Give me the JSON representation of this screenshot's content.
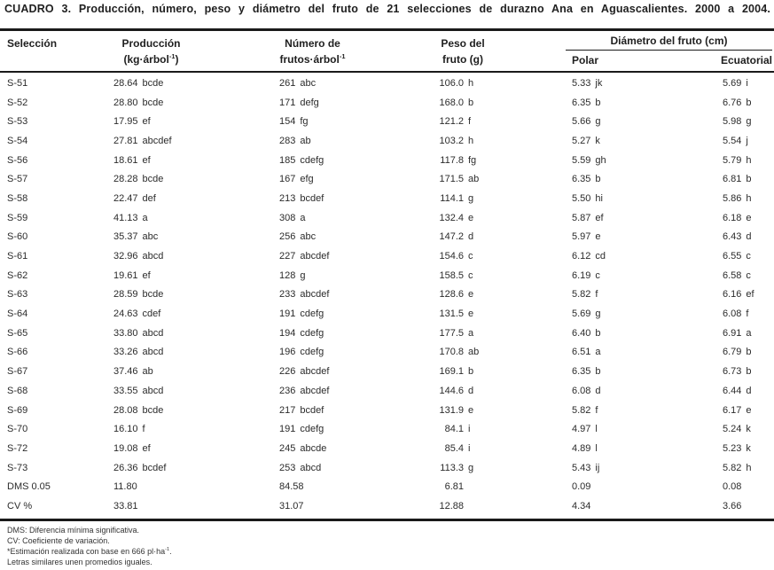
{
  "title": "CUADRO 3. Producción, número, peso y diámetro del fruto de 21 selecciones de durazno Ana en Aguascalientes. 2000 a 2004.",
  "header": {
    "seleccion": "Selección",
    "produccion_line1": "Producción",
    "produccion_unit_pre": "(kg·árbol",
    "produccion_unit_sup": "-1",
    "produccion_unit_post": ")",
    "numero_line1": "Número de",
    "numero_unit_pre": "frutos·árbol",
    "numero_unit_sup": "-1",
    "peso_line1": "Peso del",
    "peso_line2": "fruto (g)",
    "diametro_span": "Diámetro del fruto (cm)",
    "polar": "Polar",
    "ecuatorial": "Ecuatorial"
  },
  "table": {
    "rows": [
      {
        "sel": "S-51",
        "prod": "28.64",
        "prodL": "bcde",
        "num": "261",
        "numL": "abc",
        "peso": "106.0",
        "pesoL": "h",
        "pol": "5.33",
        "polL": "jk",
        "ecu": "5.69",
        "ecuL": "i"
      },
      {
        "sel": "S-52",
        "prod": "28.80",
        "prodL": "bcde",
        "num": "171",
        "numL": "defg",
        "peso": "168.0",
        "pesoL": "b",
        "pol": "6.35",
        "polL": "b",
        "ecu": "6.76",
        "ecuL": "b"
      },
      {
        "sel": "S-53",
        "prod": "17.95",
        "prodL": "ef",
        "num": "154",
        "numL": "fg",
        "peso": "121.2",
        "pesoL": "f",
        "pol": "5.66",
        "polL": "g",
        "ecu": "5.98",
        "ecuL": "g"
      },
      {
        "sel": "S-54",
        "prod": "27.81",
        "prodL": "abcdef",
        "num": "283",
        "numL": "ab",
        "peso": "103.2",
        "pesoL": "h",
        "pol": "5.27",
        "polL": "k",
        "ecu": "5.54",
        "ecuL": "j"
      },
      {
        "sel": "S-56",
        "prod": "18.61",
        "prodL": "ef",
        "num": "185",
        "numL": "cdefg",
        "peso": "117.8",
        "pesoL": "fg",
        "pol": "5.59",
        "polL": "gh",
        "ecu": "5.79",
        "ecuL": "h"
      },
      {
        "sel": "S-57",
        "prod": "28.28",
        "prodL": "bcde",
        "num": "167",
        "numL": "efg",
        "peso": "171.5",
        "pesoL": "ab",
        "pol": "6.35",
        "polL": "b",
        "ecu": "6.81",
        "ecuL": "b"
      },
      {
        "sel": "S-58",
        "prod": "22.47",
        "prodL": "def",
        "num": "213",
        "numL": "bcdef",
        "peso": "114.1",
        "pesoL": "g",
        "pol": "5.50",
        "polL": "hi",
        "ecu": "5.86",
        "ecuL": "h"
      },
      {
        "sel": "S-59",
        "prod": "41.13",
        "prodL": "a",
        "num": "308",
        "numL": "a",
        "peso": "132.4",
        "pesoL": "e",
        "pol": "5.87",
        "polL": "ef",
        "ecu": "6.18",
        "ecuL": "e"
      },
      {
        "sel": "S-60",
        "prod": "35.37",
        "prodL": "abc",
        "num": "256",
        "numL": "abc",
        "peso": "147.2",
        "pesoL": "d",
        "pol": "5.97",
        "polL": "e",
        "ecu": "6.43",
        "ecuL": "d"
      },
      {
        "sel": "S-61",
        "prod": "32.96",
        "prodL": "abcd",
        "num": "227",
        "numL": "abcdef",
        "peso": "154.6",
        "pesoL": "c",
        "pol": "6.12",
        "polL": "cd",
        "ecu": "6.55",
        "ecuL": "c"
      },
      {
        "sel": "S-62",
        "prod": "19.61",
        "prodL": "ef",
        "num": "128",
        "numL": "g",
        "peso": "158.5",
        "pesoL": "c",
        "pol": "6.19",
        "polL": "c",
        "ecu": "6.58",
        "ecuL": "c"
      },
      {
        "sel": "S-63",
        "prod": "28.59",
        "prodL": "bcde",
        "num": "233",
        "numL": "abcdef",
        "peso": "128.6",
        "pesoL": "e",
        "pol": "5.82",
        "polL": "f",
        "ecu": "6.16",
        "ecuL": "ef"
      },
      {
        "sel": "S-64",
        "prod": "24.63",
        "prodL": "cdef",
        "num": "191",
        "numL": "cdefg",
        "peso": "131.5",
        "pesoL": "e",
        "pol": "5.69",
        "polL": "g",
        "ecu": "6.08",
        "ecuL": "f"
      },
      {
        "sel": "S-65",
        "prod": "33.80",
        "prodL": "abcd",
        "num": "194",
        "numL": "cdefg",
        "peso": "177.5",
        "pesoL": "a",
        "pol": "6.40",
        "polL": "b",
        "ecu": "6.91",
        "ecuL": "a"
      },
      {
        "sel": "S-66",
        "prod": "33.26",
        "prodL": "abcd",
        "num": "196",
        "numL": "cdefg",
        "peso": "170.8",
        "pesoL": "ab",
        "pol": "6.51",
        "polL": "a",
        "ecu": "6.79",
        "ecuL": "b"
      },
      {
        "sel": "S-67",
        "prod": "37.46",
        "prodL": "ab",
        "num": "226",
        "numL": "abcdef",
        "peso": "169.1",
        "pesoL": "b",
        "pol": "6.35",
        "polL": "b",
        "ecu": "6.73",
        "ecuL": "b"
      },
      {
        "sel": "S-68",
        "prod": "33.55",
        "prodL": "abcd",
        "num": "236",
        "numL": "abcdef",
        "peso": "144.6",
        "pesoL": "d",
        "pol": "6.08",
        "polL": "d",
        "ecu": "6.44",
        "ecuL": "d"
      },
      {
        "sel": "S-69",
        "prod": "28.08",
        "prodL": "bcde",
        "num": "217",
        "numL": "bcdef",
        "peso": "131.9",
        "pesoL": "e",
        "pol": "5.82",
        "polL": "f",
        "ecu": "6.17",
        "ecuL": "e"
      },
      {
        "sel": "S-70",
        "prod": "16.10",
        "prodL": "f",
        "num": "191",
        "numL": "cdefg",
        "peso": "84.1",
        "pesoL": "i",
        "pol": "4.97",
        "polL": "l",
        "ecu": "5.24",
        "ecuL": "k"
      },
      {
        "sel": "S-72",
        "prod": "19.08",
        "prodL": "ef",
        "num": "245",
        "numL": "abcde",
        "peso": "85.4",
        "pesoL": "i",
        "pol": "4.89",
        "polL": "l",
        "ecu": "5.23",
        "ecuL": "k"
      },
      {
        "sel": "S-73",
        "prod": "26.36",
        "prodL": "bcdef",
        "num": "253",
        "numL": "abcd",
        "peso": "113.3",
        "pesoL": "g",
        "pol": "5.43",
        "polL": "ij",
        "ecu": "5.82",
        "ecuL": "h"
      },
      {
        "sel": "DMS 0.05",
        "prod": "11.80",
        "prodL": "",
        "num": "84.58",
        "numL": "",
        "peso": "6.81",
        "pesoL": "",
        "pol": "0.09",
        "polL": "",
        "ecu": "0.08",
        "ecuL": ""
      },
      {
        "sel": "CV %",
        "prod": "33.81",
        "prodL": "",
        "num": "31.07",
        "numL": "",
        "peso": "12.88",
        "pesoL": "",
        "pol": "4.34",
        "polL": "",
        "ecu": "3.66",
        "ecuL": ""
      }
    ]
  },
  "footnotes": {
    "dms": "DMS: Diferencia mínima significativa.",
    "cv": "CV: Coeficiente de variación.",
    "estimacion_pre": "*Estimación realizada con base en 666 pl·ha",
    "estimacion_sup": "-1",
    "estimacion_post": ".",
    "letras": "Letras similares unen promedios iguales."
  },
  "colors": {
    "background": "#ffffff",
    "text": "#2b2b2b",
    "rule": "#1a1a1a"
  }
}
